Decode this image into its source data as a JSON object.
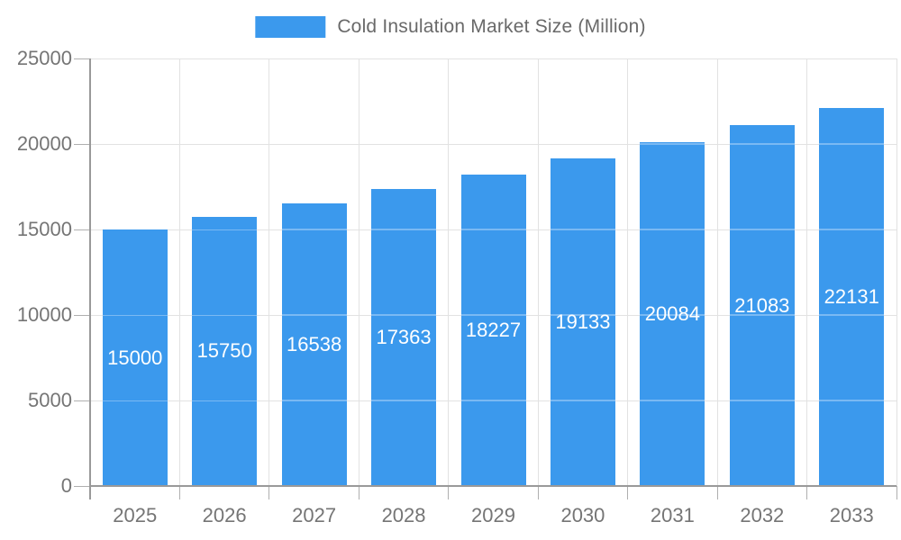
{
  "legend": {
    "label": "Cold Insulation Market Size (Million)"
  },
  "colors": {
    "bar": "#3B99ED",
    "grid": "#E2E2E2",
    "grid_over_bar": "rgba(255,255,255,0.32)",
    "axis": "#999999",
    "tick": "#AFAFAF",
    "axis_label": "#757575",
    "legend_label": "#696969",
    "value_label": "#FFFFFF",
    "background": "#FFFFFF"
  },
  "chart_data": {
    "type": "bar",
    "title": "Cold Insulation Market Size (Million)",
    "categories": [
      "2025",
      "2026",
      "2027",
      "2028",
      "2029",
      "2030",
      "2031",
      "2032",
      "2033"
    ],
    "series": [
      {
        "name": "Cold Insulation Market Size (Million)",
        "values": [
          15000,
          15750,
          16538,
          17363,
          18227,
          19133,
          20084,
          21083,
          22131
        ]
      }
    ],
    "xlabel": "",
    "ylabel": "",
    "ylim": [
      0,
      25000
    ],
    "yticks": [
      0,
      5000,
      10000,
      15000,
      20000,
      25000
    ],
    "grid": true,
    "legend_position": "top-center",
    "value_label_position": "inside-middle"
  }
}
